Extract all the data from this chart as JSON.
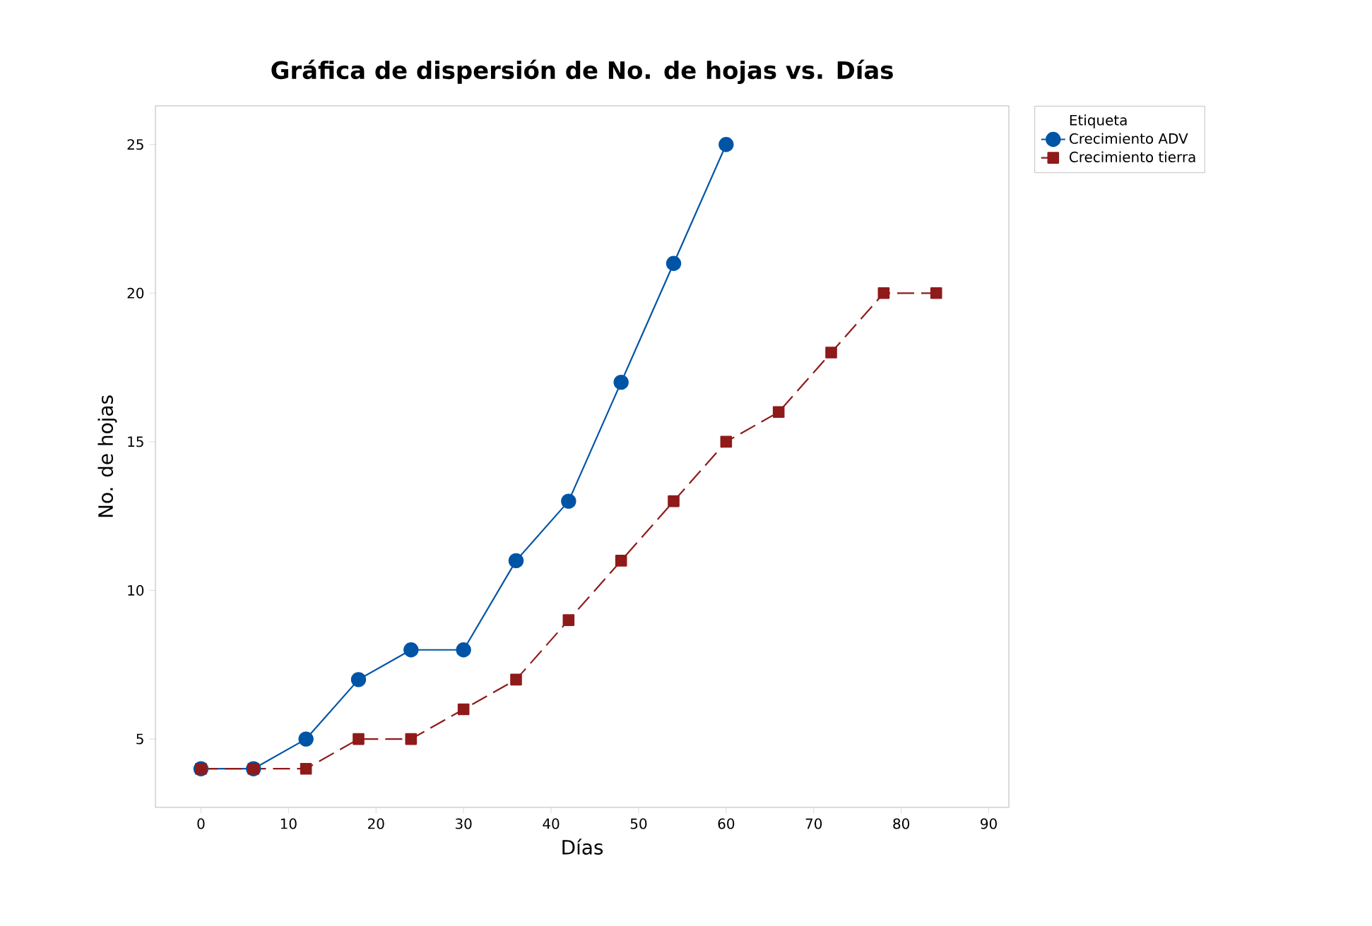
{
  "chart_data": {
    "type": "line",
    "title": "Gráfica de dispersión de No. de hojas vs. Días",
    "xlabel": "Días",
    "ylabel": "No. de hojas",
    "legend_title": "Etiqueta",
    "legend": "right",
    "xlim": [
      -5.2,
      92.3
    ],
    "ylim": [
      2.7,
      26.3
    ],
    "xticks": [
      0,
      10,
      20,
      30,
      40,
      50,
      60,
      70,
      80,
      90
    ],
    "yticks": [
      5,
      10,
      15,
      20,
      25
    ],
    "grid": false,
    "series": [
      {
        "name": "Crecimiento ADV",
        "color": "#0054a6",
        "marker": "circle",
        "line_style": "solid",
        "x": [
          0,
          6,
          12,
          18,
          24,
          30,
          36,
          42,
          48,
          54,
          60
        ],
        "values": [
          4,
          4,
          5,
          7,
          8,
          8,
          11,
          13,
          17,
          21,
          25
        ]
      },
      {
        "name": "Crecimiento tierra",
        "color": "#8f1a1a",
        "marker": "square",
        "line_style": "dashed",
        "x": [
          0,
          6,
          12,
          18,
          24,
          30,
          36,
          42,
          48,
          54,
          60,
          66,
          72,
          78,
          84
        ],
        "values": [
          4,
          4,
          4,
          5,
          5,
          6,
          7,
          9,
          11,
          13,
          15,
          16,
          18,
          20,
          20
        ]
      }
    ]
  }
}
